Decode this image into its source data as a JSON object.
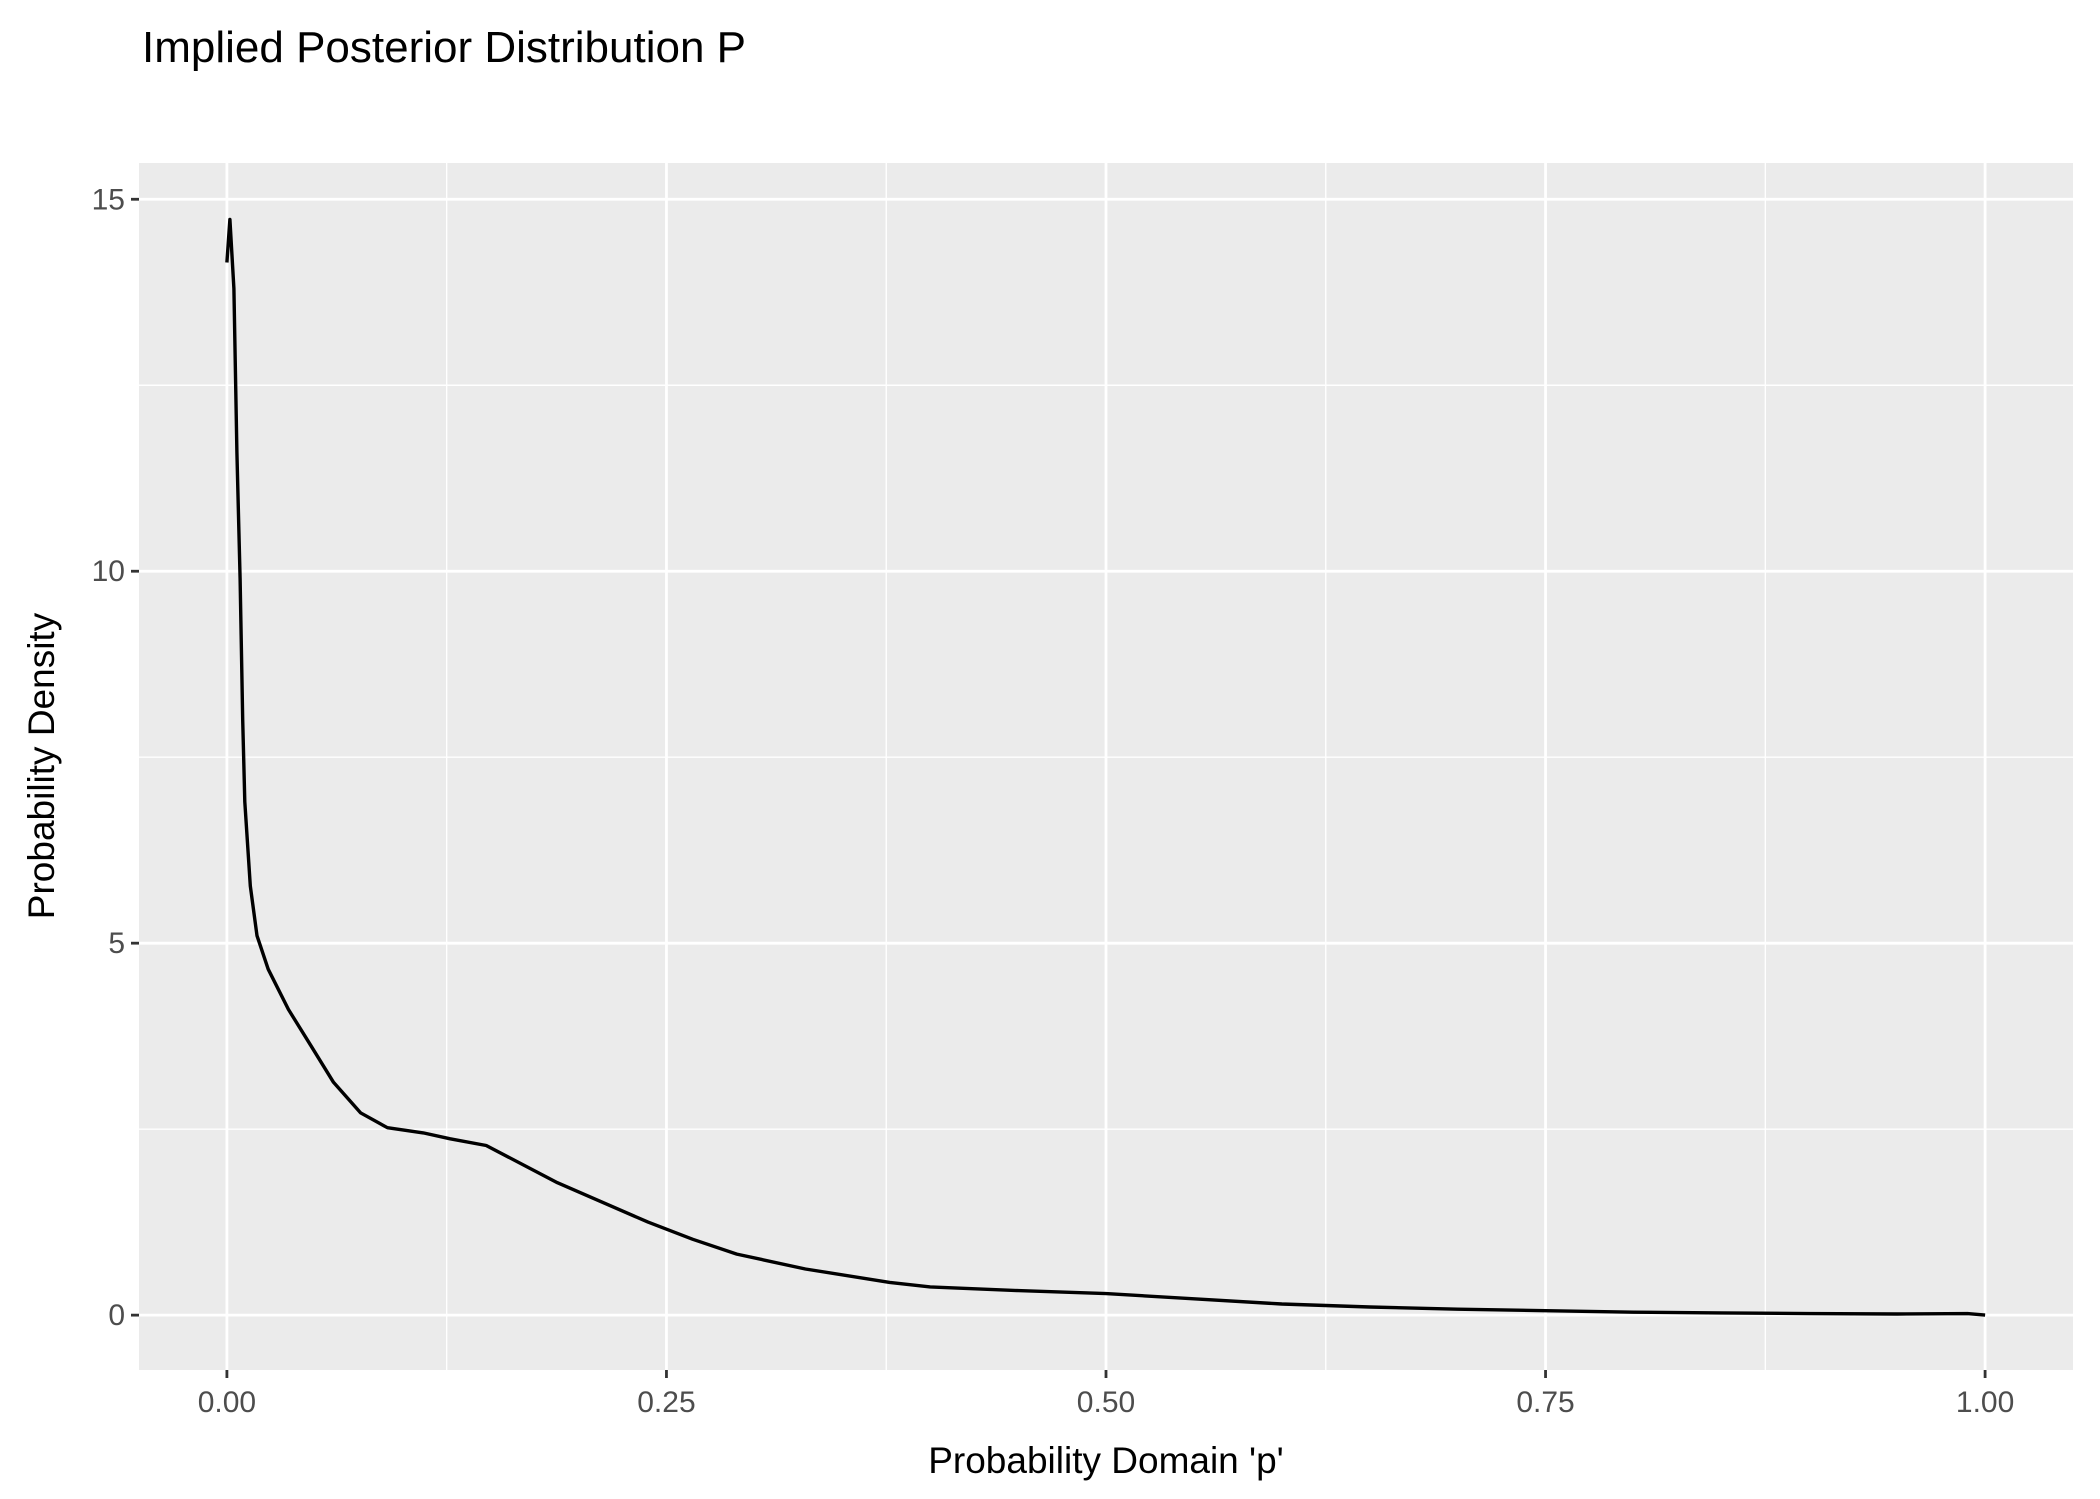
{
  "chart_data": {
    "type": "line",
    "title": "Implied Posterior Distribution P",
    "xlabel": "Probability Domain 'p'",
    "ylabel": "Probability Density",
    "xlim": [
      0,
      1
    ],
    "ylim": [
      0,
      14.75
    ],
    "x_ticks": [
      0,
      0.25,
      0.5,
      0.75,
      1
    ],
    "x_tick_labels": [
      "0.00",
      "0.25",
      "0.50",
      "0.75",
      "1.00"
    ],
    "y_ticks": [
      0,
      5,
      10,
      15
    ],
    "y_tick_labels": [
      "0",
      "5",
      "10",
      "15"
    ],
    "grid": true,
    "background": "#ebebeb",
    "line_color": "#000000",
    "series": [
      {
        "x": [
          0,
          0.0017,
          0.004,
          0.0057,
          0.0075,
          0.009,
          0.0102,
          0.0133,
          0.0171,
          0.0235,
          0.035,
          0.0478,
          0.0606,
          0.076,
          0.0913,
          0.1117,
          0.127,
          0.1475,
          0.188,
          0.2395,
          0.265,
          0.29,
          0.329,
          0.377,
          0.4,
          0.45,
          0.5,
          0.55,
          0.6,
          0.65,
          0.7,
          0.75,
          0.8,
          0.85,
          0.9,
          0.95,
          0.99,
          1.0
        ],
        "y": [
          14.15,
          14.73,
          13.8,
          11.6,
          9.9,
          8.0,
          6.9,
          5.77,
          5.1,
          4.65,
          4.11,
          3.62,
          3.13,
          2.72,
          2.52,
          2.45,
          2.37,
          2.28,
          1.78,
          1.25,
          1.02,
          0.82,
          0.62,
          0.44,
          0.38,
          0.33,
          0.29,
          0.22,
          0.15,
          0.11,
          0.08,
          0.06,
          0.04,
          0.03,
          0.02,
          0.015,
          0.02,
          0.0
        ]
      }
    ]
  }
}
